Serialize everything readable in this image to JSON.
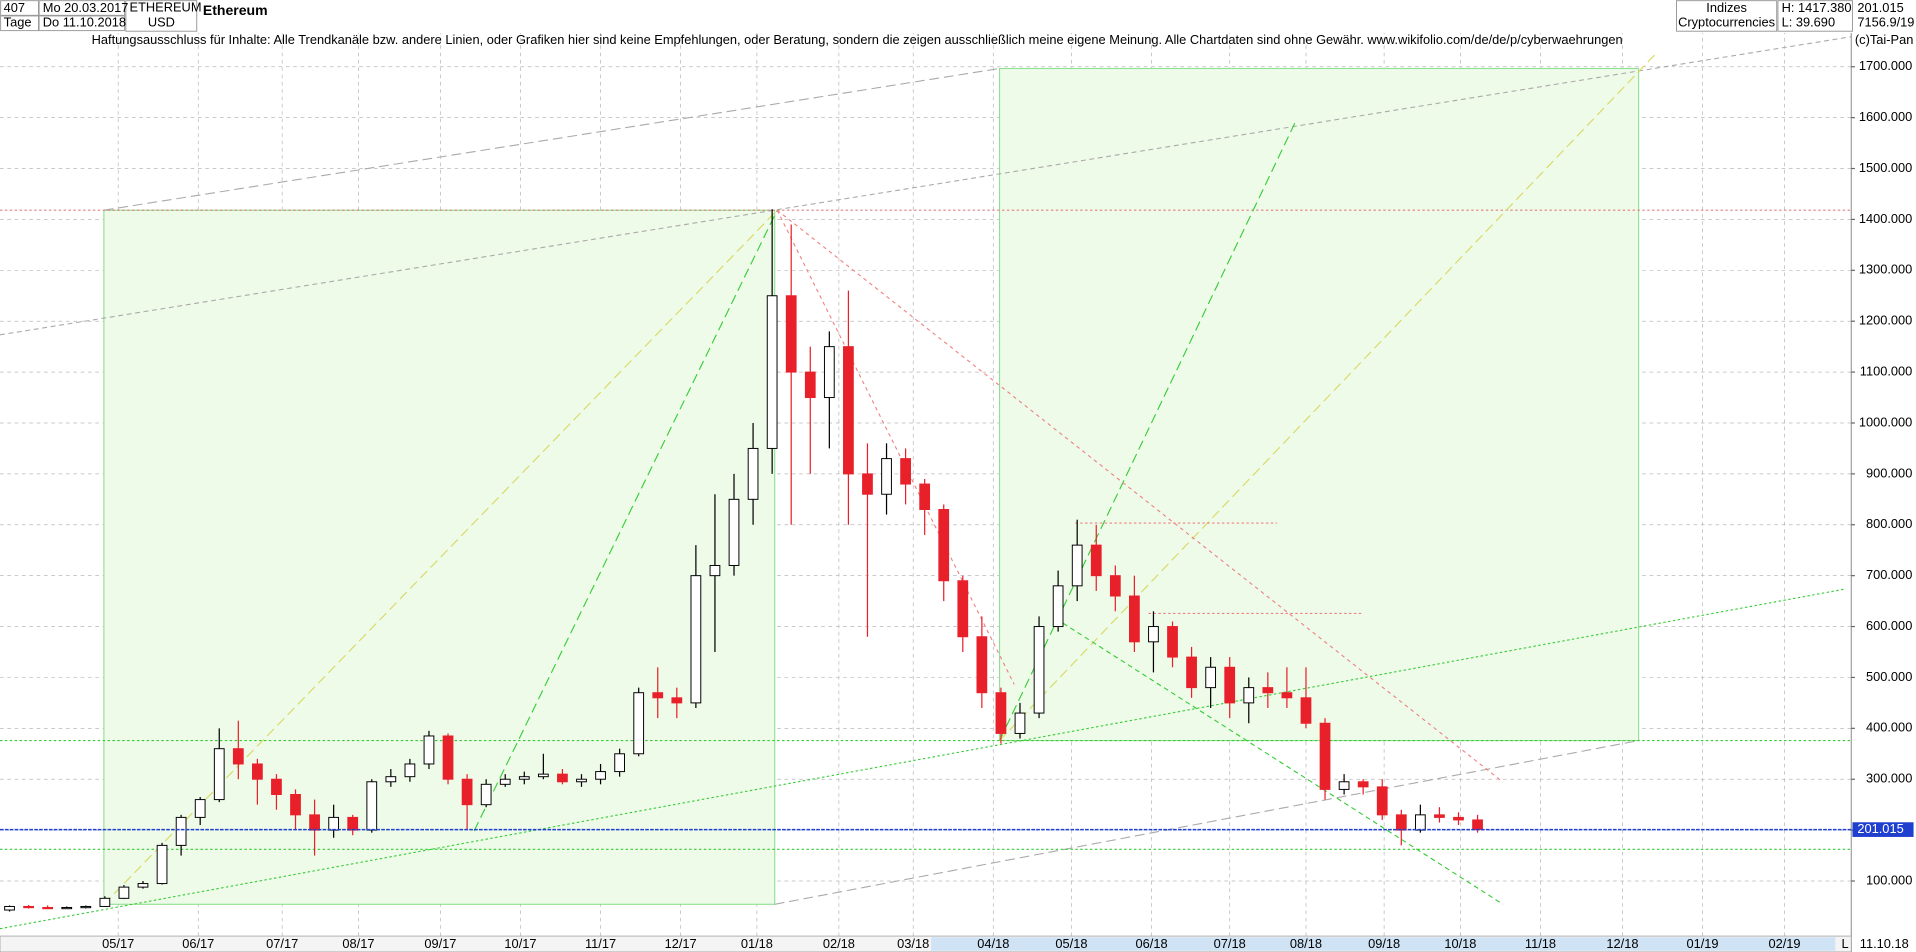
{
  "header": {
    "count": "407",
    "start_date": "Mo 20.03.2017",
    "period": "Tage",
    "end_date": "Do 11.10.2018",
    "symbol": "ETHEREUM",
    "currency": "USD",
    "name": "Ethereum",
    "group": "Indizes",
    "subgroup": "Cryptocurrencies",
    "high": "H: 1417.380",
    "low": "L: 39.690",
    "extra": "7156.9/19",
    "copyright": "(c)Tai-Pan",
    "footer_date": "11.10.18",
    "footer_mode": "L"
  },
  "chart_data": {
    "type": "candlestick",
    "subtitle": "Haftungsausschluss für Inhalte: Alle Trendkanäle bzw. andere Linien, oder Grafiken hier sind keine Empfehlungen, oder Beratung, sondern die zeigen ausschließlich meine eigene Meinung. Alle Chartdaten sind ohne Gewähr.  www.wikifolio.com/de/de/p/cyberwaehrungen",
    "categories": [
      null,
      null,
      null,
      null,
      null,
      null,
      null,
      null,
      null,
      null,
      null,
      null,
      null,
      null,
      null,
      null,
      null,
      null,
      null,
      null,
      null,
      null,
      null,
      null,
      null,
      null,
      null,
      null,
      null,
      null,
      null,
      null,
      null,
      null,
      null,
      null,
      null,
      null,
      null,
      null,
      null,
      null,
      null,
      null,
      null,
      null,
      null,
      null,
      null,
      null,
      null,
      null,
      null,
      null,
      null,
      null,
      null,
      null,
      null,
      null,
      null,
      null,
      null,
      null,
      null,
      null,
      null,
      null,
      null,
      null,
      null,
      null,
      null,
      null,
      null,
      null,
      null,
      null
    ],
    "open": [
      43,
      50,
      48,
      47,
      48,
      50,
      66,
      88,
      95,
      170,
      225,
      260,
      360,
      330,
      300,
      270,
      230,
      200,
      225,
      200,
      295,
      305,
      330,
      385,
      300,
      250,
      290,
      300,
      305,
      310,
      295,
      300,
      315,
      350,
      470,
      460,
      450,
      700,
      720,
      850,
      950,
      1250,
      1100,
      1050,
      1150,
      900,
      860,
      930,
      880,
      830,
      690,
      580,
      470,
      390,
      430,
      600,
      680,
      760,
      700,
      660,
      570,
      600,
      540,
      480,
      520,
      450,
      480,
      470,
      460,
      410,
      280,
      295,
      285,
      230,
      200,
      230,
      225,
      220
    ],
    "high": [
      52,
      53,
      52,
      50,
      52,
      70,
      92,
      100,
      175,
      230,
      265,
      400,
      415,
      340,
      310,
      280,
      260,
      250,
      230,
      300,
      320,
      340,
      395,
      390,
      310,
      300,
      310,
      315,
      350,
      320,
      310,
      330,
      360,
      480,
      520,
      480,
      760,
      860,
      900,
      1000,
      1420,
      1390,
      1150,
      1180,
      1260,
      960,
      960,
      950,
      890,
      840,
      700,
      620,
      480,
      450,
      620,
      710,
      810,
      800,
      720,
      700,
      630,
      610,
      560,
      540,
      540,
      500,
      510,
      520,
      520,
      420,
      310,
      300,
      300,
      240,
      250,
      245,
      235,
      230
    ],
    "low": [
      40,
      46,
      45,
      45,
      46,
      49,
      65,
      85,
      93,
      150,
      210,
      255,
      300,
      250,
      240,
      200,
      150,
      185,
      190,
      195,
      285,
      295,
      320,
      290,
      200,
      245,
      285,
      290,
      300,
      290,
      285,
      290,
      305,
      345,
      420,
      420,
      440,
      550,
      700,
      800,
      900,
      800,
      900,
      950,
      800,
      580,
      820,
      840,
      780,
      650,
      550,
      440,
      370,
      380,
      420,
      590,
      650,
      670,
      630,
      550,
      510,
      520,
      460,
      440,
      420,
      410,
      440,
      440,
      400,
      260,
      270,
      270,
      220,
      170,
      195,
      215,
      210,
      195
    ],
    "close": [
      50,
      48,
      47,
      48,
      50,
      66,
      88,
      95,
      170,
      225,
      260,
      360,
      330,
      300,
      270,
      230,
      200,
      225,
      200,
      295,
      305,
      330,
      385,
      300,
      250,
      290,
      300,
      305,
      310,
      295,
      300,
      315,
      350,
      470,
      460,
      450,
      700,
      720,
      850,
      950,
      1250,
      1100,
      1050,
      1150,
      900,
      860,
      930,
      880,
      830,
      690,
      580,
      470,
      390,
      430,
      600,
      680,
      760,
      700,
      660,
      570,
      600,
      540,
      480,
      520,
      450,
      480,
      470,
      460,
      410,
      280,
      295,
      285,
      230,
      200,
      230,
      225,
      220,
      201.015
    ],
    "up_color": "#ffffff",
    "down_color": "#e8202a",
    "last_price": 201.015,
    "last_price_color": "#1f3fcf",
    "xlim": [
      -0.5,
      96.6
    ],
    "ylim": [
      0,
      1771
    ],
    "grid": true,
    "xticks": [
      {
        "value": 5.7,
        "label": "05/17"
      },
      {
        "value": 9.9,
        "label": "06/17"
      },
      {
        "value": 14.3,
        "label": "07/17"
      },
      {
        "value": 18.3,
        "label": "08/17"
      },
      {
        "value": 22.6,
        "label": "09/17"
      },
      {
        "value": 26.8,
        "label": "10/17"
      },
      {
        "value": 31.0,
        "label": "11/17"
      },
      {
        "value": 35.2,
        "label": "12/17"
      },
      {
        "value": 39.2,
        "label": "01/18"
      },
      {
        "value": 43.5,
        "label": "02/18"
      },
      {
        "value": 47.4,
        "label": "03/18"
      },
      {
        "value": 51.6,
        "label": "04/18"
      },
      {
        "value": 55.7,
        "label": "05/18"
      },
      {
        "value": 59.9,
        "label": "06/18"
      },
      {
        "value": 64.0,
        "label": "07/18"
      },
      {
        "value": 68.0,
        "label": "08/18"
      },
      {
        "value": 72.1,
        "label": "09/18"
      },
      {
        "value": 76.1,
        "label": "10/18"
      },
      {
        "value": 80.3,
        "label": "11/18"
      },
      {
        "value": 84.6,
        "label": "12/18"
      },
      {
        "value": 88.8,
        "label": "01/19"
      },
      {
        "value": 93.1,
        "label": "02/19"
      }
    ],
    "yticks": [
      {
        "value": 100,
        "label": "100.000"
      },
      {
        "value": 200,
        "label": "200.000"
      },
      {
        "value": 300,
        "label": "300.000"
      },
      {
        "value": 400,
        "label": "400.000"
      },
      {
        "value": 500,
        "label": "500.000"
      },
      {
        "value": 600,
        "label": "600.000"
      },
      {
        "value": 700,
        "label": "700.000"
      },
      {
        "value": 800,
        "label": "800.000"
      },
      {
        "value": 900,
        "label": "900.000"
      },
      {
        "value": 1000,
        "label": "1000.000"
      },
      {
        "value": 1100,
        "label": "1100.000"
      },
      {
        "value": 1200,
        "label": "1200.000"
      },
      {
        "value": 1300,
        "label": "1300.000"
      },
      {
        "value": 1400,
        "label": "1400.000"
      },
      {
        "value": 1500,
        "label": "1500.000"
      },
      {
        "value": 1600,
        "label": "1600.000"
      },
      {
        "value": 1700,
        "label": "1700.000"
      }
    ]
  }
}
